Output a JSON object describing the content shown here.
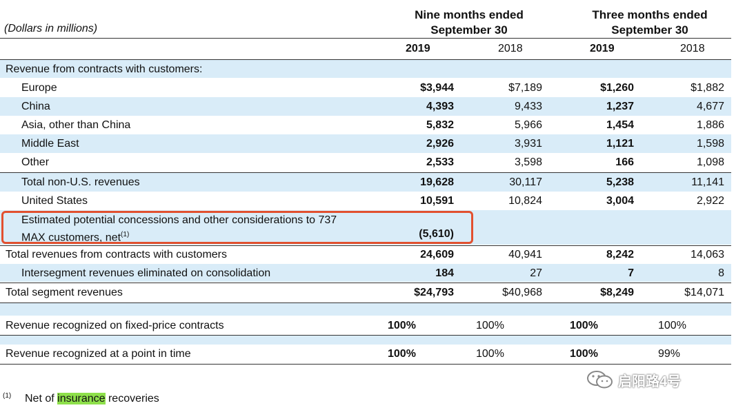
{
  "header": {
    "units": "(Dollars in millions)",
    "nine_months_l1": "Nine months ended",
    "nine_months_l2": "September 30",
    "three_months_l1": "Three months ended",
    "three_months_l2": "September 30",
    "years": [
      "2019",
      "2018",
      "2019",
      "2018"
    ]
  },
  "section_title": "Revenue from contracts with customers:",
  "rows": [
    {
      "label": "Europe",
      "v": [
        "$3,944",
        "$7,189",
        "$1,260",
        "$1,882"
      ]
    },
    {
      "label": "China",
      "v": [
        "4,393",
        "9,433",
        "1,237",
        "4,677"
      ]
    },
    {
      "label": "Asia, other than China",
      "v": [
        "5,832",
        "5,966",
        "1,454",
        "1,886"
      ]
    },
    {
      "label": "Middle East",
      "v": [
        "2,926",
        "3,931",
        "1,121",
        "1,598"
      ]
    },
    {
      "label": "Other",
      "v": [
        "2,533",
        "3,598",
        "166",
        "1,098"
      ]
    },
    {
      "label": "Total non-U.S. revenues",
      "v": [
        "19,628",
        "30,117",
        "5,238",
        "11,141"
      ]
    },
    {
      "label": "United States",
      "v": [
        "10,591",
        "10,824",
        "3,004",
        "2,922"
      ]
    }
  ],
  "max_concessions": {
    "line1": "Estimated potential concessions and other considerations to 737",
    "line2": "MAX customers, net",
    "footnote_ref": "(1)",
    "value": "(5,610)"
  },
  "totals": [
    {
      "label": "Total revenues from contracts with customers",
      "v": [
        "24,609",
        "40,941",
        "8,242",
        "14,063"
      ]
    },
    {
      "label": "Intersegment revenues eliminated on consolidation",
      "v": [
        "184",
        "27",
        "7",
        "8"
      ]
    },
    {
      "label": "Total segment revenues",
      "v": [
        "$24,793",
        "$40,968",
        "$8,249",
        "$14,071"
      ]
    }
  ],
  "percent_rows": [
    {
      "label": "Revenue recognized on fixed-price contracts",
      "v": [
        "100%",
        "100%",
        "100%",
        "100%"
      ]
    },
    {
      "label": "Revenue recognized at a point in time",
      "v": [
        "100%",
        "100%",
        "100%",
        "99%"
      ]
    }
  ],
  "footnote": {
    "mark": "(1)",
    "pre": "Net of ",
    "highlight": "insurance",
    "post": " recoveries"
  },
  "watermark": {
    "text": "启阳路4号",
    "icon": "wechat-icon"
  },
  "colors": {
    "band": "#d9ecf8",
    "highlight_box": "#e2502f",
    "text_highlight": "#8ee04b"
  }
}
